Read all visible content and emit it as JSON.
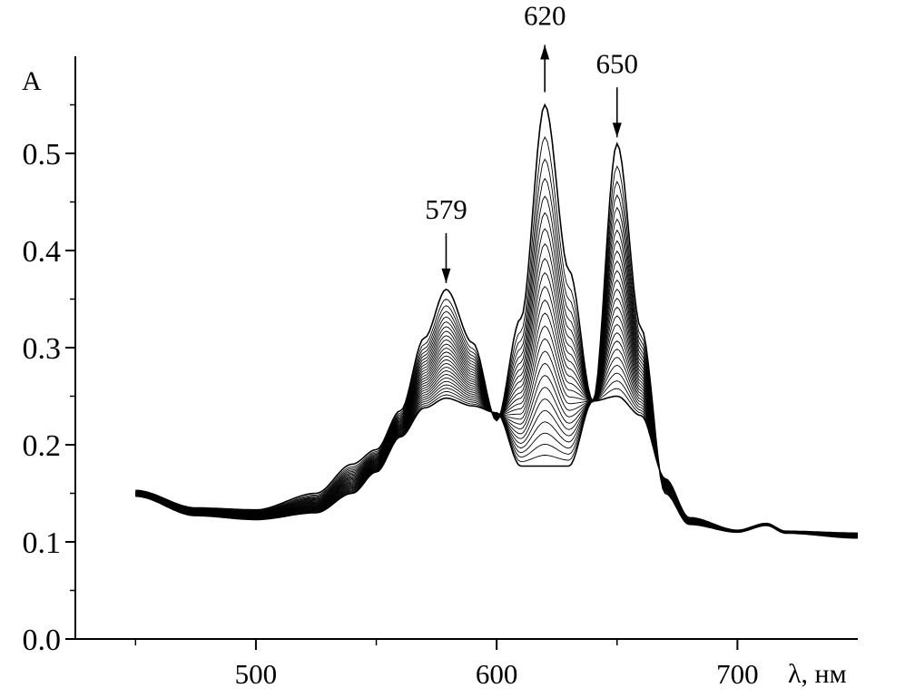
{
  "chart_data": {
    "type": "line",
    "title": "",
    "xlabel": "λ, нм",
    "ylabel": "A",
    "xlim": [
      425,
      750
    ],
    "ylim": [
      0.0,
      0.6
    ],
    "x_ticks": [
      500,
      600,
      700
    ],
    "y_ticks": [
      0.0,
      0.1,
      0.2,
      0.3,
      0.4,
      0.5
    ],
    "x_tick_labels": [
      "500",
      "600",
      "700"
    ],
    "y_tick_labels": [
      "0.0",
      "0.1",
      "0.2",
      "0.3",
      "0.4",
      "0.5"
    ],
    "grid": false,
    "legend": "none",
    "series_count": 26,
    "line_color": "#000000",
    "annotations": [
      {
        "label": "579",
        "x": 579,
        "direction": "down",
        "peak_at": 0.36
      },
      {
        "label": "620",
        "x": 620,
        "direction": "up",
        "peak_at": 0.55
      },
      {
        "label": "650",
        "x": 650,
        "direction": "down",
        "peak_at": 0.51
      }
    ],
    "first_spectrum": {
      "x": [
        450,
        475,
        500,
        525,
        540,
        550,
        560,
        570,
        579,
        590,
        600,
        610,
        620,
        630,
        640,
        650,
        660,
        670,
        680,
        700,
        712,
        720,
        750
      ],
      "y": [
        0.153,
        0.135,
        0.133,
        0.15,
        0.18,
        0.195,
        0.235,
        0.31,
        0.36,
        0.305,
        0.225,
        0.33,
        0.55,
        0.38,
        0.245,
        0.51,
        0.32,
        0.15,
        0.118,
        0.11,
        0.117,
        0.109,
        0.104
      ]
    },
    "last_spectrum": {
      "x": [
        450,
        475,
        500,
        525,
        540,
        550,
        560,
        570,
        579,
        590,
        600,
        610,
        620,
        630,
        640,
        650,
        660,
        670,
        680,
        700,
        712,
        720,
        750
      ],
      "y": [
        0.147,
        0.127,
        0.123,
        0.13,
        0.15,
        0.172,
        0.208,
        0.238,
        0.248,
        0.24,
        0.233,
        0.178,
        0.178,
        0.178,
        0.245,
        0.25,
        0.23,
        0.165,
        0.125,
        0.112,
        0.119,
        0.111,
        0.109
      ]
    }
  }
}
